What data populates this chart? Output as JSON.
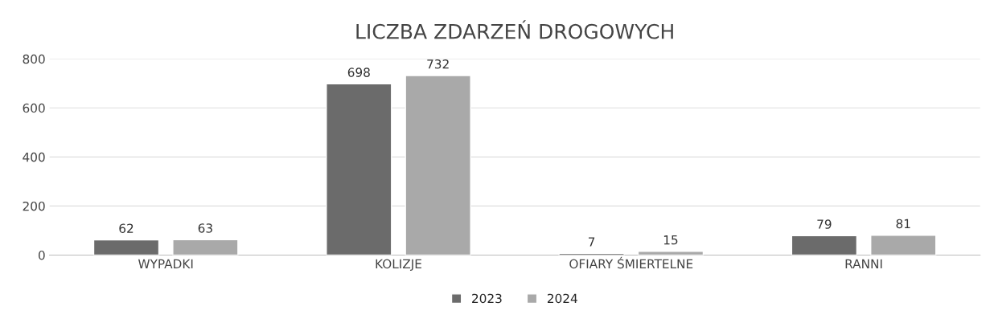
{
  "chart_data": {
    "type": "bar",
    "title": "LICZBA ZDARZEŃ DROGOWYCH",
    "categories": [
      "WYPADKI",
      "KOLIZJE",
      "OFIARY ŚMIERTELNE",
      "RANNI"
    ],
    "series": [
      {
        "name": "2023",
        "color": "#6b6b6b",
        "values": [
          62,
          698,
          7,
          79
        ]
      },
      {
        "name": "2024",
        "color": "#a9a9a9",
        "values": [
          63,
          732,
          15,
          81
        ]
      }
    ],
    "ylim": [
      0,
      800
    ],
    "yticks": [
      0,
      200,
      400,
      600,
      800
    ],
    "grid": "y",
    "legend": "bottom",
    "data_labels": true
  }
}
